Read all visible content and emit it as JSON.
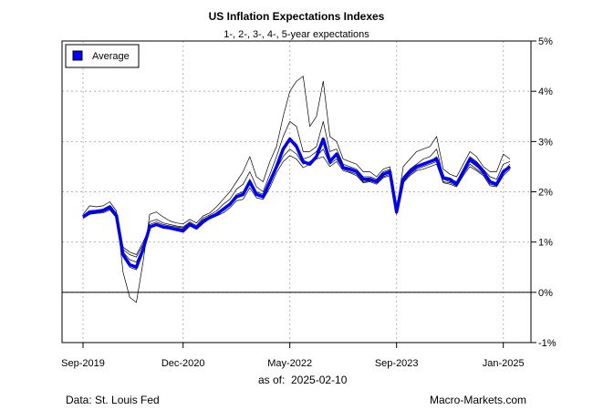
{
  "chart_data": {
    "type": "line",
    "title": "US Inflation Expectations Indexes",
    "subtitle": "1-, 2-, 3-, 4-, 5-year expectations",
    "as_of_label": "as of:",
    "as_of_value": "2025-02-10",
    "source": "Data: St. Louis Fed",
    "credit": "Macro-Markets.com",
    "x_tick_labels": [
      "Sep-2019",
      "Dec-2020",
      "May-2022",
      "Sep-2023",
      "Jan-2025"
    ],
    "x_tick_index": [
      0,
      15,
      31,
      47,
      63
    ],
    "y_tick_labels": [
      "5%",
      "4%",
      "3%",
      "2%",
      "1%",
      "0%",
      "-1%"
    ],
    "y_tick_values": [
      5,
      4,
      3,
      2,
      1,
      0,
      -1
    ],
    "ylim": [
      -1,
      5
    ],
    "grid": true,
    "zero_line": true,
    "legend": {
      "position": "top-left",
      "label": "Average",
      "color": "#0000ff"
    },
    "average_color": "#0000ff",
    "component_color": "#000000",
    "series": [
      {
        "name": "1-year",
        "values": [
          1.55,
          1.72,
          1.7,
          1.72,
          1.8,
          1.62,
          0.4,
          -0.1,
          -0.2,
          0.6,
          1.55,
          1.6,
          1.5,
          1.42,
          1.38,
          1.36,
          1.45,
          1.38,
          1.52,
          1.58,
          1.7,
          1.85,
          2.0,
          2.2,
          2.4,
          2.7,
          2.3,
          2.2,
          2.6,
          2.9,
          3.5,
          4.0,
          4.2,
          4.3,
          3.3,
          3.5,
          4.2,
          3.1,
          3.0,
          2.65,
          2.6,
          2.55,
          2.4,
          2.4,
          2.3,
          2.45,
          2.5,
          1.65,
          2.5,
          2.65,
          2.8,
          2.85,
          2.9,
          3.1,
          2.45,
          2.35,
          2.3,
          2.55,
          2.8,
          2.7,
          2.5,
          2.4,
          2.4,
          2.75,
          2.65
        ]
      },
      {
        "name": "2-year",
        "values": [
          1.52,
          1.62,
          1.63,
          1.65,
          1.7,
          1.55,
          0.7,
          0.5,
          0.45,
          0.8,
          1.4,
          1.45,
          1.38,
          1.35,
          1.32,
          1.3,
          1.4,
          1.33,
          1.48,
          1.54,
          1.62,
          1.75,
          1.85,
          2.05,
          2.15,
          2.4,
          2.1,
          2.0,
          2.35,
          2.7,
          3.1,
          3.4,
          3.3,
          2.8,
          2.8,
          2.9,
          3.4,
          2.8,
          2.85,
          2.55,
          2.5,
          2.45,
          2.3,
          2.3,
          2.25,
          2.4,
          2.45,
          1.55,
          2.3,
          2.45,
          2.55,
          2.65,
          2.7,
          2.85,
          2.3,
          2.25,
          2.2,
          2.45,
          2.7,
          2.6,
          2.45,
          2.3,
          2.25,
          2.55,
          2.6
        ]
      },
      {
        "name": "3-year",
        "values": [
          1.5,
          1.58,
          1.6,
          1.62,
          1.68,
          1.52,
          0.8,
          0.65,
          0.6,
          0.9,
          1.35,
          1.4,
          1.35,
          1.32,
          1.3,
          1.28,
          1.38,
          1.31,
          1.45,
          1.51,
          1.58,
          1.68,
          1.78,
          1.95,
          2.0,
          2.25,
          2.0,
          1.95,
          2.25,
          2.55,
          2.85,
          3.05,
          2.95,
          2.65,
          2.7,
          2.8,
          3.05,
          2.65,
          2.75,
          2.5,
          2.45,
          2.4,
          2.25,
          2.25,
          2.2,
          2.35,
          2.4,
          1.58,
          2.25,
          2.4,
          2.5,
          2.55,
          2.6,
          2.7,
          2.25,
          2.2,
          2.15,
          2.4,
          2.6,
          2.5,
          2.4,
          2.2,
          2.15,
          2.4,
          2.55
        ]
      },
      {
        "name": "4-year",
        "values": [
          1.48,
          1.56,
          1.58,
          1.6,
          1.66,
          1.5,
          0.85,
          0.75,
          0.7,
          0.95,
          1.3,
          1.35,
          1.32,
          1.3,
          1.28,
          1.26,
          1.35,
          1.3,
          1.42,
          1.48,
          1.55,
          1.62,
          1.72,
          1.88,
          1.92,
          2.15,
          1.92,
          1.9,
          2.15,
          2.45,
          2.7,
          2.85,
          2.75,
          2.55,
          2.6,
          2.7,
          2.85,
          2.55,
          2.65,
          2.45,
          2.4,
          2.35,
          2.2,
          2.22,
          2.18,
          2.3,
          2.35,
          1.6,
          2.2,
          2.35,
          2.45,
          2.5,
          2.55,
          2.6,
          2.2,
          2.18,
          2.12,
          2.35,
          2.55,
          2.45,
          2.35,
          2.15,
          2.12,
          2.35,
          2.5
        ]
      },
      {
        "name": "5-year",
        "values": [
          1.47,
          1.55,
          1.57,
          1.58,
          1.64,
          1.48,
          0.9,
          0.8,
          0.75,
          1.0,
          1.28,
          1.33,
          1.3,
          1.28,
          1.26,
          1.25,
          1.33,
          1.29,
          1.4,
          1.46,
          1.52,
          1.58,
          1.68,
          1.82,
          1.85,
          2.08,
          1.88,
          1.85,
          2.08,
          2.38,
          2.6,
          2.72,
          2.65,
          2.48,
          2.55,
          2.65,
          2.7,
          2.5,
          2.6,
          2.42,
          2.38,
          2.32,
          2.18,
          2.2,
          2.15,
          2.28,
          2.32,
          1.62,
          2.18,
          2.32,
          2.42,
          2.45,
          2.5,
          2.55,
          2.18,
          2.15,
          2.1,
          2.32,
          2.5,
          2.42,
          2.32,
          2.12,
          2.1,
          2.32,
          2.45
        ]
      },
      {
        "name": "Average",
        "values": [
          1.5,
          1.6,
          1.61,
          1.63,
          1.7,
          1.53,
          0.75,
          0.55,
          0.5,
          0.85,
          1.3,
          1.35,
          1.3,
          1.28,
          1.25,
          1.22,
          1.35,
          1.28,
          1.4,
          1.49,
          1.55,
          1.65,
          1.75,
          1.9,
          1.95,
          2.2,
          1.95,
          1.9,
          2.2,
          2.5,
          2.85,
          3.05,
          2.9,
          2.6,
          2.55,
          2.7,
          3.05,
          2.6,
          2.75,
          2.48,
          2.45,
          2.4,
          2.25,
          2.25,
          2.2,
          2.35,
          2.4,
          1.6,
          2.25,
          2.4,
          2.5,
          2.55,
          2.6,
          2.65,
          2.28,
          2.25,
          2.15,
          2.4,
          2.65,
          2.55,
          2.4,
          2.2,
          2.15,
          2.4,
          2.5
        ]
      }
    ]
  }
}
